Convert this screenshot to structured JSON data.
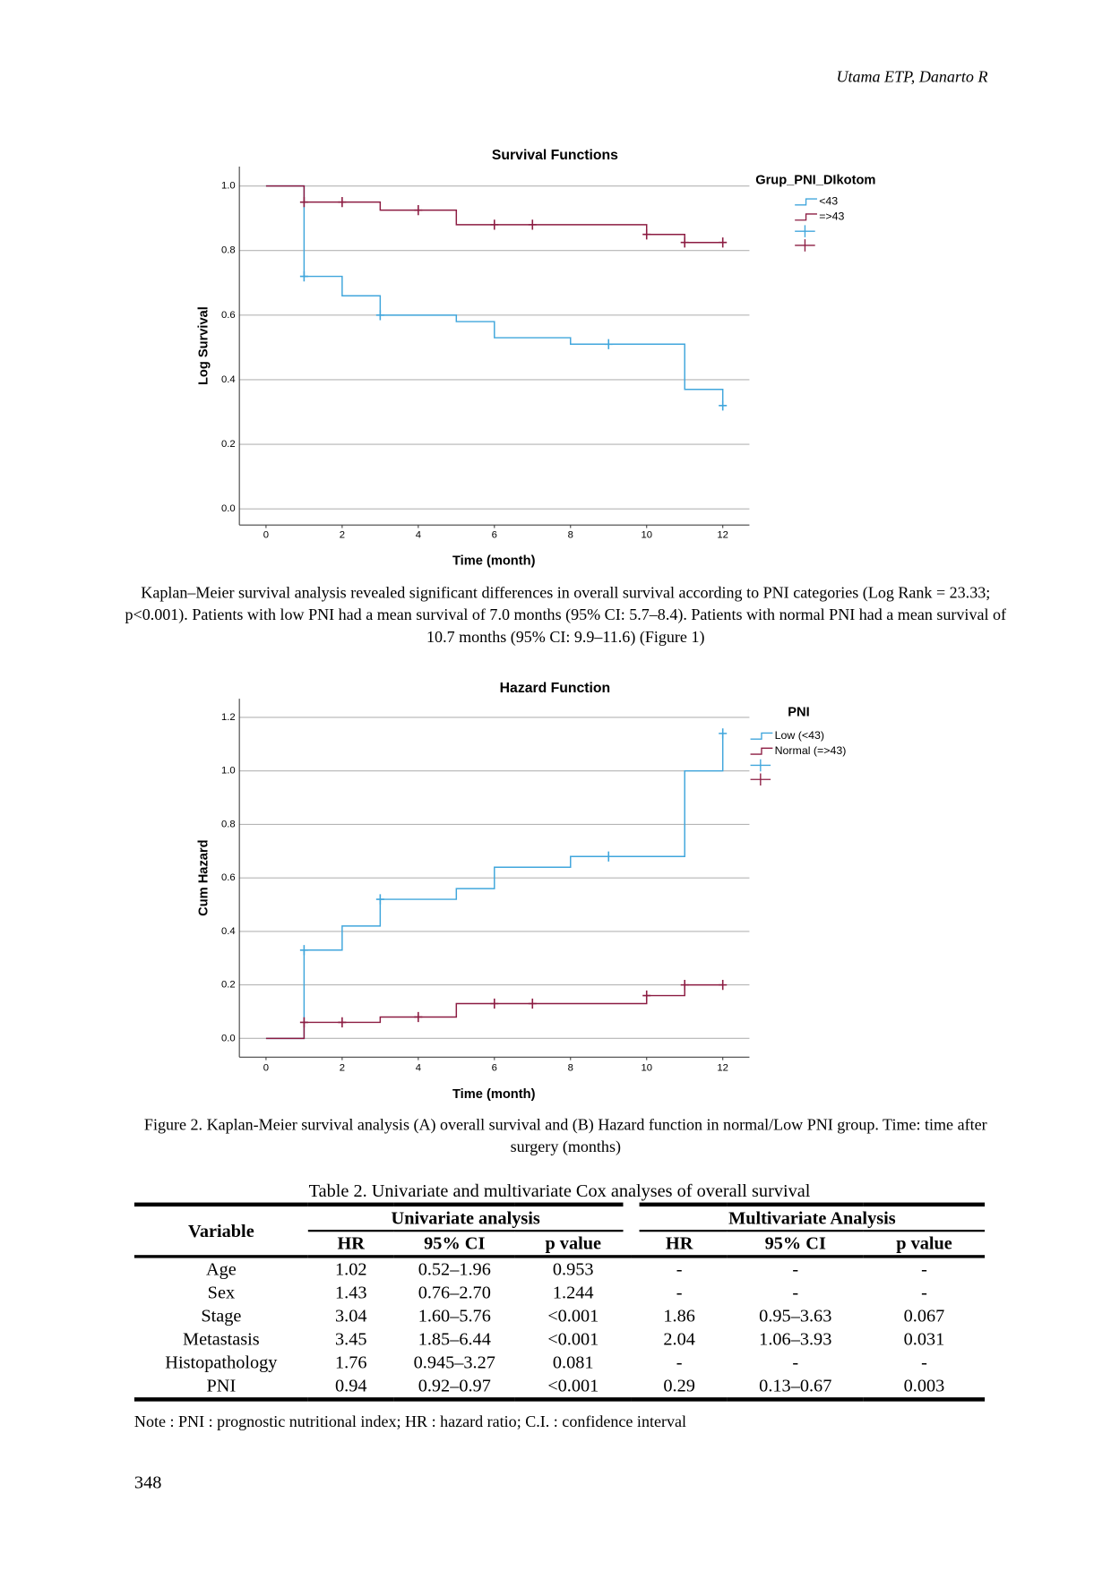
{
  "header": "Utama ETP, Danarto R",
  "chart_data": [
    {
      "type": "line",
      "step": true,
      "title": "Survival Functions",
      "x_label": "Time (month)",
      "y_label": "Log Survival",
      "legend_title": "Grup_PNI_DIkotom",
      "legend": "right",
      "grid": true,
      "xlim": [
        -0.7,
        12.7
      ],
      "xticks": [
        0,
        2,
        4,
        6,
        8,
        10,
        12
      ],
      "ylim": [
        -0.05,
        1.06
      ],
      "yticks": [
        {
          "value": 0,
          "label": "0.0"
        },
        0.2,
        0.4,
        0.6,
        0.8,
        {
          "value": 1,
          "label": "1.0"
        }
      ],
      "series": [
        {
          "name": "<43",
          "color": "#40a6dc",
          "x": [
            0,
            1,
            2,
            3,
            5,
            6,
            8,
            11,
            12
          ],
          "values": [
            1,
            0.72,
            0.66,
            0.6,
            0.58,
            0.53,
            0.51,
            0.37,
            0.32
          ],
          "censored": {
            "x": [
              1,
              3,
              9,
              12
            ],
            "values": [
              0.72,
              0.6,
              0.51,
              0.32
            ]
          }
        },
        {
          "name": "=>43",
          "color": "#8c1c42",
          "x": [
            0,
            1,
            3,
            5,
            10,
            11,
            12
          ],
          "values": [
            1,
            0.95,
            0.925,
            0.88,
            0.85,
            0.825,
            0.825
          ],
          "censored": {
            "x": [
              1,
              2,
              4,
              6,
              7,
              10,
              11,
              12
            ],
            "values": [
              0.95,
              0.95,
              0.925,
              0.88,
              0.88,
              0.85,
              0.825,
              0.825
            ]
          }
        }
      ]
    },
    {
      "type": "line",
      "step": true,
      "title": "Hazard Function",
      "x_label": "Time (month)",
      "y_label": "Cum Hazard",
      "legend_title": "PNI",
      "legend": "right",
      "grid": true,
      "xlim": [
        -0.7,
        12.7
      ],
      "xticks": [
        0,
        2,
        4,
        6,
        8,
        10,
        12
      ],
      "ylim": [
        -0.07,
        1.27
      ],
      "yticks": [
        {
          "value": 0,
          "label": "0.0"
        },
        0.2,
        0.4,
        0.6,
        0.8,
        {
          "value": 1,
          "label": "1.0"
        },
        1.2
      ],
      "series": [
        {
          "name": "Low (<43)",
          "color": "#40a6dc",
          "x": [
            0,
            1,
            2,
            3,
            5,
            6,
            8,
            11,
            12
          ],
          "values": [
            0,
            0.33,
            0.42,
            0.52,
            0.56,
            0.64,
            0.68,
            1,
            1.14
          ],
          "censored": {
            "x": [
              1,
              3,
              9,
              12
            ],
            "values": [
              0.33,
              0.52,
              0.68,
              1.14
            ]
          }
        },
        {
          "name": "Normal (=>43)",
          "color": "#8c1c42",
          "x": [
            0,
            1,
            3,
            5,
            10,
            11,
            12
          ],
          "values": [
            0,
            0.06,
            0.08,
            0.13,
            0.16,
            0.2,
            0.2
          ],
          "censored": {
            "x": [
              1,
              2,
              4,
              6,
              7,
              10,
              11,
              12
            ],
            "values": [
              0.06,
              0.06,
              0.08,
              0.13,
              0.13,
              0.16,
              0.2,
              0.2
            ]
          }
        }
      ]
    }
  ],
  "paragraph": "Kaplan–Meier survival analysis revealed significant differences in overall survival according to PNI categories (Log Rank = 23.33; p<0.001). Patients with low PNI had a mean survival of 7.0 months (95% CI: 5.7–8.4). Patients with normal PNI had a mean survival of 10.7 months (95% CI: 9.9–11.6) (Figure 1)",
  "figure_caption": "Figure 2. Kaplan-Meier survival analysis  (A) overall survival and (B) Hazard function in normal/Low PNI group. Time: time after surgery (months)",
  "table": {
    "title": "Table 2. Univariate and multivariate Cox analyses of overall survival",
    "variable_header": "Variable",
    "groups": [
      "Univariate analysis",
      "Multivariate Analysis"
    ],
    "columns": [
      "HR",
      "95% CI",
      "p value",
      "HR",
      "95% CI",
      "p value"
    ],
    "rows": [
      [
        "Age",
        "1.02",
        "0.52–1.96",
        "0.953",
        "-",
        "-",
        "-"
      ],
      [
        "Sex",
        "1.43",
        "0.76–2.70",
        "1.244",
        "-",
        "-",
        "-"
      ],
      [
        "Stage",
        "3.04",
        "1.60–5.76",
        "<0.001",
        "1.86",
        "0.95–3.63",
        "0.067"
      ],
      [
        "Metastasis",
        "3.45",
        "1.85–6.44",
        "<0.001",
        "2.04",
        "1.06–3.93",
        "0.031"
      ],
      [
        "Histopathology",
        "1.76",
        "0.945–3.27",
        "0.081",
        "-",
        "-",
        "-"
      ],
      [
        "PNI",
        "0.94",
        "0.92–0.97",
        "<0.001",
        "0.29",
        "0.13–0.67",
        "0.003"
      ]
    ],
    "note": "Note : PNI : prognostic nutritional index; HR : hazard ratio; C.I. : confidence interval"
  },
  "page_number": "348"
}
